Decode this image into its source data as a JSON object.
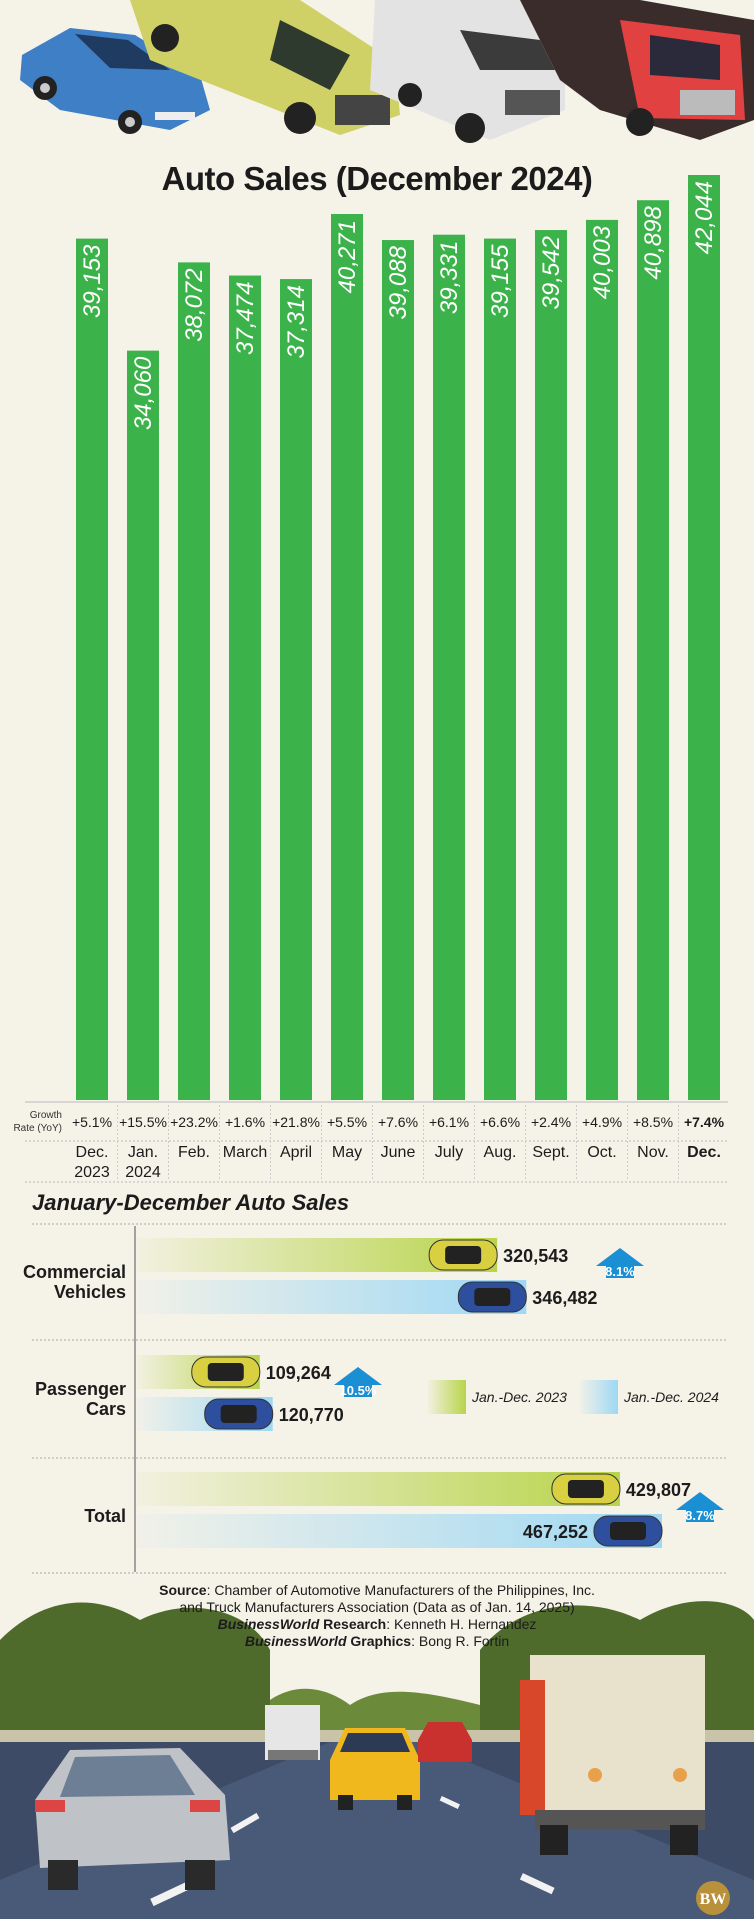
{
  "title": "Auto Sales (December 2024)",
  "colors": {
    "bar_green": "#3cb34a",
    "y2023": "#b8d44a",
    "y2024": "#9ed8f4",
    "arrow_blue": "#1a8fd4",
    "background": "#f5f2e8"
  },
  "growth_header": [
    "Growth",
    "Rate (YoY)"
  ],
  "chart_data": [
    {
      "type": "bar",
      "title": "Auto Sales (December 2024)",
      "categories": [
        [
          "Dec.",
          "2023"
        ],
        [
          "Jan.",
          "2024"
        ],
        [
          "Feb."
        ],
        [
          "March"
        ],
        [
          "April"
        ],
        [
          "May"
        ],
        [
          "June"
        ],
        [
          "July"
        ],
        [
          "Aug."
        ],
        [
          "Sept."
        ],
        [
          "Oct."
        ],
        [
          "Nov."
        ],
        [
          "Dec."
        ]
      ],
      "values": [
        39153,
        34060,
        38072,
        37474,
        37314,
        40271,
        39088,
        39331,
        39155,
        39542,
        40003,
        40898,
        42044
      ],
      "value_labels": [
        "39,153",
        "34,060",
        "38,072",
        "37,474",
        "37,314",
        "40,271",
        "39,088",
        "39,331",
        "39,155",
        "39,542",
        "40,003",
        "40,898",
        "42,044"
      ],
      "growth_rate": [
        "+5.1%",
        "+15.5%",
        "+23.2%",
        "+1.6%",
        "+21.8%",
        "+5.5%",
        "+7.6%",
        "+6.1%",
        "+6.6%",
        "+2.4%",
        "+4.9%",
        "+8.5%",
        "+7.4%"
      ],
      "highlight_last": true
    },
    {
      "type": "bar",
      "orientation": "horizontal",
      "title": "January-December Auto Sales",
      "categories": [
        [
          "Commercial",
          "Vehicles"
        ],
        [
          "Passenger",
          "Cars"
        ],
        [
          "Total"
        ]
      ],
      "series": [
        {
          "name": "Jan.-Dec. 2023",
          "values": [
            320543,
            109264,
            429807
          ],
          "labels": [
            "320,543",
            "109,264",
            "429,807"
          ]
        },
        {
          "name": "Jan.-Dec. 2024",
          "values": [
            346482,
            120770,
            467252
          ],
          "labels": [
            "346,482",
            "120,770",
            "467,252"
          ]
        }
      ],
      "growth": [
        "8.1%",
        "10.5%",
        "8.7%"
      ]
    }
  ],
  "source": {
    "label": "Source",
    "line1": ": Chamber of Automotive Manufacturers of the Philippines, Inc.",
    "line2": "and Truck Manufacturers Association (Data as of Jan. 14, 2025)",
    "research_brand": "BusinessWorld",
    "research_label": " Research",
    "research_name": ": Kenneth H. Hernandez",
    "graphics_brand": "BusinessWorld",
    "graphics_label": " Graphics",
    "graphics_name": ": Bong R. Fortin"
  },
  "logo_text": "BW"
}
